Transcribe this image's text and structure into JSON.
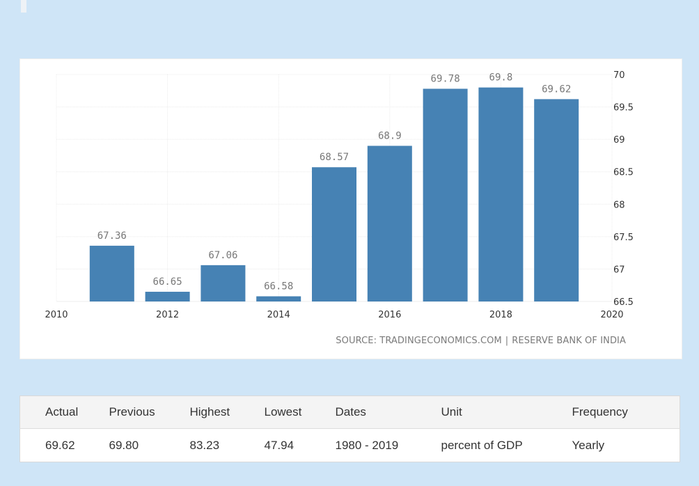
{
  "chart_data": {
    "type": "bar",
    "x": [
      2011,
      2012,
      2013,
      2014,
      2015,
      2016,
      2017,
      2018,
      2019
    ],
    "values": [
      67.36,
      66.65,
      67.06,
      66.58,
      68.57,
      68.9,
      69.78,
      69.8,
      69.62
    ],
    "value_labels": [
      "67.36",
      "66.65",
      "67.06",
      "66.58",
      "68.57",
      "68.9",
      "69.78",
      "69.8",
      "69.62"
    ],
    "x_ticks": [
      "2010",
      "2012",
      "2014",
      "2016",
      "2018",
      "2020"
    ],
    "x_tick_values": [
      2010,
      2012,
      2014,
      2016,
      2018,
      2020
    ],
    "y_ticks": [
      "66.5",
      "67",
      "67.5",
      "68",
      "68.5",
      "69",
      "69.5",
      "70"
    ],
    "y_tick_values": [
      66.5,
      67,
      67.5,
      68,
      68.5,
      69,
      69.5,
      70
    ],
    "xlim": [
      2010,
      2020
    ],
    "ylim": [
      66.5,
      70
    ],
    "y_axis_side": "right",
    "grid": true,
    "bar_color": "#4682b4",
    "title": "",
    "xlabel": "",
    "ylabel": ""
  },
  "source": {
    "prefix": "SOURCE: TRADINGECONOMICS.COM",
    "separator": "|",
    "provider": "RESERVE BANK OF INDIA"
  },
  "stats": {
    "headers": [
      "Actual",
      "Previous",
      "Highest",
      "Lowest",
      "Dates",
      "Unit",
      "Frequency"
    ],
    "values": [
      "69.62",
      "69.80",
      "83.23",
      "47.94",
      "1980 - 2019",
      "percent of GDP",
      "Yearly"
    ]
  },
  "colors": {
    "background_grid": "#cfe5f7",
    "axis_text": "#333333",
    "label_text": "#777777"
  }
}
